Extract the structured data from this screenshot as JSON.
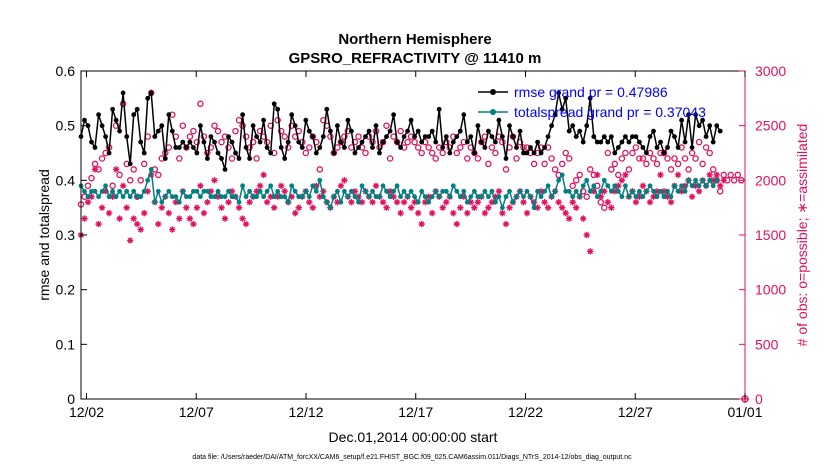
{
  "chart_data": {
    "type": "line",
    "title": "Northern Hemisphere",
    "subtitle": "GPSRO_REFRACTIVITY @ 11410 m",
    "xlabel": "Dec.01,2014 00:00:00 start",
    "ylabel": "rmse and totalspread",
    "y2label": "# of obs: o=possible; ∗=assimilated",
    "footnote": "data file: /Users/raeder/DAI/ATM_forcXX/CAM6_setup/f.e21.FHIST_BGC.f09_025.CAM6assim.011/Diags_NTrS_2014-12/obs_diag_output.nc",
    "x_tick_labels": [
      "12/02",
      "12/07",
      "12/12",
      "12/17",
      "12/22",
      "12/27",
      "01/01"
    ],
    "x_tick_days": [
      1,
      6,
      11,
      16,
      21,
      26,
      31
    ],
    "xlim": [
      0.75,
      31
    ],
    "ylim": [
      0,
      0.6
    ],
    "y_ticks": [
      0,
      0.1,
      0.2,
      0.3,
      0.4,
      0.5,
      0.6
    ],
    "y_tick_labels": [
      "0",
      "0.1",
      "0.2",
      "0.3",
      "0.4",
      "0.5",
      "0.6"
    ],
    "y2lim": [
      0,
      3000
    ],
    "y2_ticks": [
      0,
      500,
      1000,
      1500,
      2000,
      2500,
      3000
    ],
    "y2_tick_labels": [
      "0",
      "500",
      "1000",
      "1500",
      "2000",
      "2500",
      "3000"
    ],
    "legend_position": "top-right",
    "colors": {
      "rmse": "#000000",
      "spread": "#008080",
      "obs": "#e0115f",
      "legend_text": "#0000ff",
      "axis": "#000000"
    },
    "series": [
      {
        "name": "rmse grand pr = 0.47986",
        "axis": "left",
        "color": "#000000",
        "values": [
          0.48,
          0.51,
          0.5,
          0.47,
          0.46,
          0.52,
          0.5,
          0.48,
          0.45,
          0.53,
          0.51,
          0.49,
          0.56,
          0.48,
          0.43,
          0.52,
          0.53,
          0.47,
          0.45,
          0.55,
          0.56,
          0.48,
          0.49,
          0.5,
          0.44,
          0.52,
          0.49,
          0.46,
          0.46,
          0.47,
          0.46,
          0.47,
          0.46,
          0.45,
          0.5,
          0.47,
          0.44,
          0.48,
          0.47,
          0.45,
          0.44,
          0.42,
          0.48,
          0.47,
          0.45,
          0.44,
          0.52,
          0.46,
          0.44,
          0.5,
          0.48,
          0.47,
          0.51,
          0.46,
          0.45,
          0.54,
          0.53,
          0.46,
          0.44,
          0.47,
          0.52,
          0.5,
          0.47,
          0.46,
          0.51,
          0.49,
          0.48,
          0.45,
          0.46,
          0.48,
          0.53,
          0.49,
          0.45,
          0.5,
          0.47,
          0.46,
          0.51,
          0.49,
          0.45,
          0.46,
          0.47,
          0.48,
          0.49,
          0.46,
          0.5,
          0.45,
          0.47,
          0.48,
          0.49,
          0.52,
          0.47,
          0.46,
          0.48,
          0.49,
          0.51,
          0.48,
          0.49,
          0.47,
          0.48,
          0.48,
          0.49,
          0.47,
          0.53,
          0.46,
          0.48,
          0.45,
          0.47,
          0.48,
          0.49,
          0.52,
          0.47,
          0.48,
          0.45,
          0.5,
          0.47,
          0.46,
          0.49,
          0.48,
          0.47,
          0.51,
          0.48,
          0.44,
          0.5,
          0.48,
          0.46,
          0.49,
          0.45,
          0.45,
          0.46,
          0.45,
          0.47,
          0.45,
          0.46,
          0.48,
          0.5,
          0.52,
          0.56,
          0.53,
          0.55,
          0.49,
          0.5,
          0.48,
          0.49,
          0.47,
          0.5,
          0.55,
          0.48,
          0.47,
          0.47,
          0.48,
          0.47,
          0.48,
          0.45,
          0.46,
          0.47,
          0.48,
          0.47,
          0.48,
          0.48,
          0.47,
          0.46,
          0.45,
          0.48,
          0.49,
          0.46,
          0.47,
          0.45,
          0.46,
          0.49,
          0.48,
          0.46,
          0.51,
          0.47,
          0.52,
          0.46,
          0.52,
          0.5,
          0.51,
          0.48,
          0.5,
          0.47,
          0.5,
          0.49
        ]
      },
      {
        "name": "totalspread grand pr = 0.37043",
        "axis": "left",
        "color": "#008080",
        "values": [
          0.39,
          0.38,
          0.37,
          0.38,
          0.38,
          0.37,
          0.38,
          0.39,
          0.37,
          0.38,
          0.37,
          0.38,
          0.37,
          0.38,
          0.37,
          0.38,
          0.37,
          0.37,
          0.38,
          0.4,
          0.42,
          0.36,
          0.38,
          0.36,
          0.37,
          0.38,
          0.37,
          0.37,
          0.36,
          0.38,
          0.37,
          0.37,
          0.38,
          0.38,
          0.37,
          0.38,
          0.38,
          0.37,
          0.37,
          0.38,
          0.37,
          0.37,
          0.38,
          0.37,
          0.37,
          0.36,
          0.39,
          0.37,
          0.38,
          0.37,
          0.37,
          0.38,
          0.37,
          0.38,
          0.39,
          0.37,
          0.38,
          0.37,
          0.37,
          0.36,
          0.39,
          0.38,
          0.37,
          0.37,
          0.38,
          0.37,
          0.39,
          0.38,
          0.4,
          0.37,
          0.36,
          0.35,
          0.37,
          0.38,
          0.36,
          0.38,
          0.37,
          0.38,
          0.37,
          0.36,
          0.39,
          0.38,
          0.37,
          0.38,
          0.37,
          0.37,
          0.39,
          0.38,
          0.37,
          0.38,
          0.39,
          0.37,
          0.38,
          0.37,
          0.38,
          0.37,
          0.36,
          0.38,
          0.37,
          0.36,
          0.37,
          0.38,
          0.37,
          0.38,
          0.38,
          0.37,
          0.39,
          0.38,
          0.37,
          0.38,
          0.36,
          0.37,
          0.38,
          0.37,
          0.37,
          0.38,
          0.37,
          0.38,
          0.36,
          0.37,
          0.35,
          0.37,
          0.38,
          0.36,
          0.37,
          0.38,
          0.37,
          0.38,
          0.37,
          0.35,
          0.38,
          0.37,
          0.38,
          0.39,
          0.37,
          0.38,
          0.4,
          0.41,
          0.38,
          0.38,
          0.37,
          0.38,
          0.37,
          0.39,
          0.4,
          0.38,
          0.39,
          0.37,
          0.38,
          0.4,
          0.39,
          0.38,
          0.39,
          0.38,
          0.37,
          0.39,
          0.37,
          0.38,
          0.37,
          0.38,
          0.37,
          0.38,
          0.39,
          0.38,
          0.37,
          0.38,
          0.37,
          0.38,
          0.37,
          0.39,
          0.38,
          0.39,
          0.38,
          0.4,
          0.39,
          0.4,
          0.39,
          0.4,
          0.39,
          0.4,
          0.39,
          0.4
        ]
      },
      {
        "name": "possible obs",
        "axis": "right",
        "marker": "o",
        "color": "#e0115f",
        "values": [
          1780,
          1850,
          1950,
          2020,
          2150,
          2100,
          2200,
          2250,
          2300,
          1950,
          2500,
          2050,
          2700,
          2150,
          2000,
          2100,
          1850,
          2000,
          2150,
          2400,
          2800,
          2100,
          2050,
          2200,
          2250,
          2300,
          2600,
          2400,
          2200,
          2500,
          2300,
          2400,
          2450,
          2350,
          2700,
          2400,
          2250,
          2300,
          2500,
          2450,
          2350,
          2400,
          2300,
          2200,
          2450,
          2550,
          2500,
          2400,
          2300,
          2350,
          2200,
          2450,
          2400,
          2350,
          2500,
          2250,
          2550,
          2450,
          2400,
          2300,
          2500,
          2400,
          2450,
          2350,
          2250,
          2300,
          2400,
          2350,
          2100,
          2550,
          2500,
          2400,
          2250,
          2300,
          2350,
          2400,
          2450,
          2300,
          2350,
          2400,
          2300,
          2250,
          2400,
          2350,
          2450,
          2300,
          2350,
          2500,
          2200,
          2400,
          2350,
          2450,
          2300,
          2350,
          2400,
          2350,
          2300,
          2250,
          2350,
          2300,
          2250,
          2200,
          2300,
          2250,
          2350,
          2300,
          2400,
          2250,
          2300,
          2350,
          2200,
          2300,
          2250,
          2200,
          2350,
          2400,
          2150,
          2300,
          2250,
          2400,
          2350,
          2100,
          2300,
          2400,
          2200,
          2350,
          2300,
          2300,
          2250,
          2150,
          2250,
          2300,
          2150,
          2300,
          2200,
          2100,
          2050,
          2150,
          2250,
          2200,
          1950,
          2000,
          2050,
          1900,
          1850,
          2100,
          2050,
          1950,
          1800,
          1750,
          2250,
          2100,
          2150,
          2050,
          2200,
          2250,
          2100,
          2250,
          2300,
          2200,
          2200,
          2150,
          2250,
          2200,
          2150,
          2250,
          2250,
          2200,
          2100,
          2200,
          2150,
          2300,
          2200,
          2100,
          2250,
          2200,
          2350,
          2150,
          2300,
          2250,
          2100,
          2000,
          1900,
          2050,
          2000,
          2050,
          2000,
          2050,
          2000
        ]
      },
      {
        "name": "assimilated obs",
        "axis": "right",
        "marker": "*",
        "color": "#e0115f",
        "values": [
          1500,
          1650,
          1800,
          1850,
          2100,
          1600,
          1750,
          1900,
          1700,
          1850,
          2100,
          1650,
          1950,
          1750,
          1450,
          1650,
          1600,
          1550,
          1700,
          1900,
          2050,
          1800,
          1600,
          1750,
          1850,
          1700,
          1550,
          1800,
          1650,
          1900,
          1750,
          1650,
          1600,
          1750,
          1950,
          1700,
          1800,
          1900,
          2000,
          1850,
          1750,
          1650,
          1800,
          1900,
          1850,
          1750,
          1650,
          1600,
          1800,
          1850,
          1900,
          1950,
          2050,
          1800,
          1850,
          1750,
          1850,
          1950,
          1900,
          1800,
          1850,
          1700,
          1750,
          1850,
          1900,
          1800,
          1750,
          1950,
          1850,
          1900,
          1800,
          1750,
          1850,
          1800,
          1950,
          2000,
          1850,
          1800,
          1900,
          1850,
          1800,
          1900,
          1850,
          1800,
          1950,
          1850,
          1800,
          1750,
          1900,
          1850,
          1800,
          1700,
          1800,
          1850,
          1750,
          1800,
          1700,
          1600,
          1800,
          1850,
          1700,
          1900,
          1850,
          1750,
          1800,
          1850,
          1700,
          1600,
          1750,
          1850,
          1700,
          1800,
          1750,
          1800,
          1850,
          1700,
          1750,
          1800,
          1850,
          1900,
          1700,
          1600,
          1750,
          1800,
          1850,
          1900,
          1800,
          1700,
          1850,
          1800,
          1750,
          1900,
          1800,
          1750,
          1850,
          1900,
          1800,
          1750,
          1700,
          1650,
          1800,
          1750,
          1850,
          1650,
          1500,
          1350,
          1900,
          2050,
          1850,
          1900,
          1800,
          1750,
          1900,
          1950,
          2000,
          2050,
          1850,
          1900,
          1800,
          1850,
          1950,
          1900,
          1800,
          1850,
          1900,
          2050,
          1900,
          1850,
          1800,
          1950,
          2050,
          1900,
          1950,
          2000,
          1850,
          1950,
          1900,
          2000,
          1950,
          2050,
          2000,
          2050,
          1950,
          2000
        ]
      }
    ]
  }
}
